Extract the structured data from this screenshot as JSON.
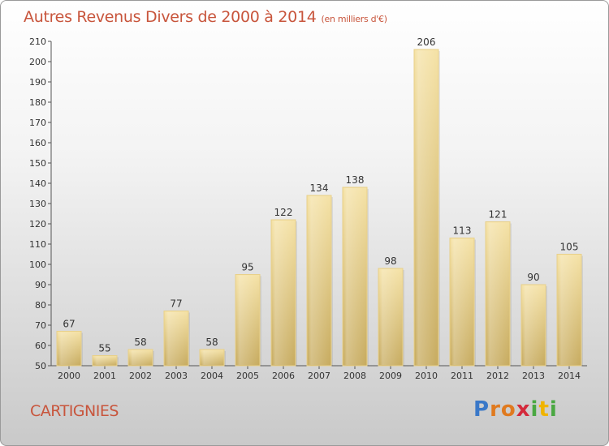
{
  "title": "Autres Revenus Divers de 2000 à 2014",
  "unit_note": "(en milliers d'€)",
  "commune": "CARTIGNIES",
  "logo": {
    "letters": [
      "P",
      "r",
      "o",
      "x",
      "i",
      "t",
      "i"
    ],
    "colors": [
      "#3a78c8",
      "#e07a1f",
      "#e07a1f",
      "#d42a3c",
      "#4aa842",
      "#f0b400",
      "#4aa842"
    ]
  },
  "chart_data": {
    "type": "bar",
    "categories": [
      "2000",
      "2001",
      "2002",
      "2003",
      "2004",
      "2005",
      "2006",
      "2007",
      "2008",
      "2009",
      "2010",
      "2011",
      "2012",
      "2013",
      "2014"
    ],
    "values": [
      67,
      55,
      58,
      77,
      58,
      95,
      122,
      134,
      138,
      98,
      206,
      113,
      121,
      90,
      105
    ],
    "ylim": [
      50,
      210
    ],
    "yticks": [
      50,
      60,
      70,
      80,
      90,
      100,
      110,
      120,
      130,
      140,
      150,
      160,
      170,
      180,
      190,
      200,
      210
    ],
    "grid": false,
    "bar_color": "#e9cf86"
  }
}
